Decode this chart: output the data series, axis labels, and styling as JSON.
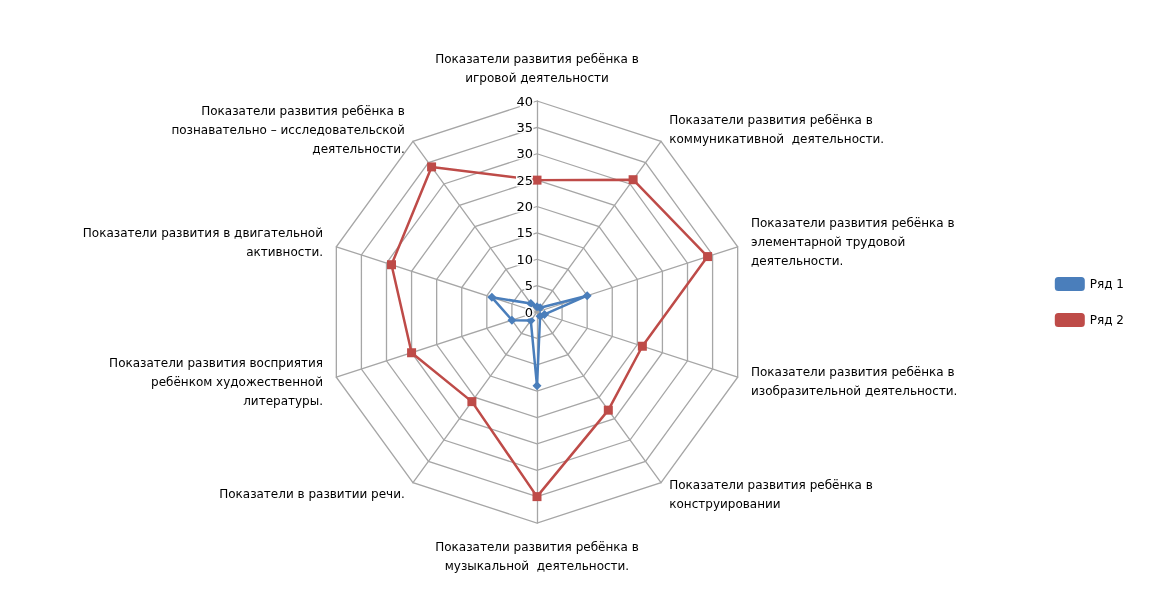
{
  "chart_data": {
    "type": "radar",
    "categories": [
      "Показатели развития ребёнка в игровой деятельности",
      "Показатели развития ребёнка в коммуникативной  деятельности.",
      "Показатели развития ребёнка в элементарной трудовой деятельности.",
      "Показатели развития ребёнка в изобразительной деятельности.",
      "Показатели развития ребёнка в конструировании",
      "Показатели развития ребёнка в музыкальной  деятельности.",
      "Показатели в развитии речи.",
      "Показатели развития восприятия ребёнком художественной литературы.",
      "Показатели развития в двигательной активности.",
      "Показатели развития ребёнка в познавательно – исследовательской деятельности."
    ],
    "series": [
      {
        "name": "Ряд 1",
        "color": "#4a7ebb",
        "marker": "diamond",
        "values": [
          1,
          1,
          10,
          1.5,
          1,
          14,
          2,
          5,
          9,
          2
        ]
      },
      {
        "name": "Ряд 2",
        "color": "#be4b48",
        "marker": "square",
        "values": [
          25,
          31,
          34,
          21,
          23,
          35,
          21,
          25,
          29,
          34
        ]
      }
    ],
    "ylim": [
      0,
      40
    ],
    "yticks": [
      0,
      5,
      10,
      15,
      20,
      25,
      30,
      35,
      40
    ],
    "grid": true,
    "legend": "right"
  }
}
